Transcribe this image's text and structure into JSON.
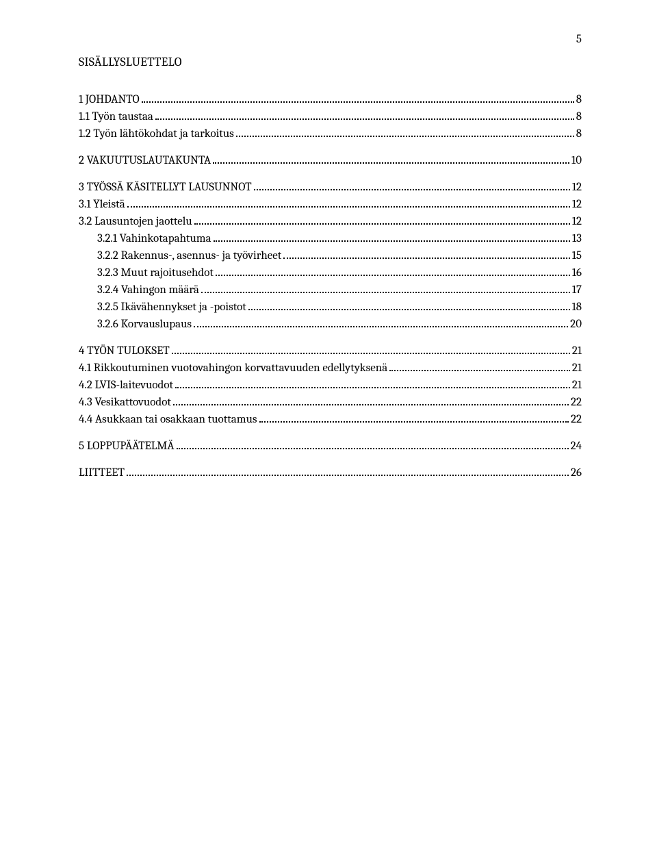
{
  "colors": {
    "background": "#ffffff",
    "text": "#000000",
    "dots": "#000000"
  },
  "typography": {
    "font_family": "Cambria, Georgia, 'Times New Roman', serif",
    "title_fontsize_pt": 13,
    "body_fontsize_pt": 12,
    "line_height": 1.0
  },
  "page_number": "5",
  "title": "SISÄLLYSLUETTELO",
  "toc": {
    "entries": [
      {
        "label": "1 JOHDANTO",
        "page": "8",
        "indent": 0,
        "section_gap": true
      },
      {
        "label": "1.1 Työn taustaa",
        "page": "8",
        "indent": 1
      },
      {
        "label": "1.2 Työn lähtökohdat ja tarkoitus",
        "page": "8",
        "indent": 1
      },
      {
        "label": "2 VAKUUTUSLAUTAKUNTA",
        "page": "10",
        "indent": 0,
        "section_gap": true
      },
      {
        "label": "3 TYÖSSÄ KÄSITELLYT LAUSUNNOT",
        "page": "12",
        "indent": 0,
        "section_gap": true
      },
      {
        "label": "3.1 Yleistä",
        "page": "12",
        "indent": 1
      },
      {
        "label": "3.2 Lausuntojen jaottelu",
        "page": "12",
        "indent": 1
      },
      {
        "label": "3.2.1 Vahinkotapahtuma",
        "page": "13",
        "indent": 2
      },
      {
        "label": "3.2.2 Rakennus-, asennus- ja työvirheet",
        "page": "15",
        "indent": 2
      },
      {
        "label": "3.2.3 Muut rajoitusehdot",
        "page": "16",
        "indent": 2
      },
      {
        "label": "3.2.4 Vahingon määrä",
        "page": "17",
        "indent": 2
      },
      {
        "label": "3.2.5 Ikävähennykset ja -poistot",
        "page": "18",
        "indent": 2
      },
      {
        "label": "3.2.6 Korvauslupaus",
        "page": "20",
        "indent": 2
      },
      {
        "label": "4 TYÖN TULOKSET",
        "page": "21",
        "indent": 0,
        "section_gap": true
      },
      {
        "label": "4.1 Rikkoutuminen vuotovahingon korvattavuuden edellytyksenä",
        "page": "21",
        "indent": 1
      },
      {
        "label": "4.2 LVIS-laitevuodot",
        "page": "21",
        "indent": 1
      },
      {
        "label": "4.3 Vesikattovuodot",
        "page": "22",
        "indent": 1
      },
      {
        "label": "4.4 Asukkaan tai osakkaan tuottamus",
        "page": "22",
        "indent": 1
      },
      {
        "label": "5 LOPPUPÄÄTELMÄ",
        "page": "24",
        "indent": 0,
        "section_gap": true
      },
      {
        "label": "LIITTEET",
        "page": "26",
        "indent": 0,
        "section_gap": true
      }
    ]
  }
}
